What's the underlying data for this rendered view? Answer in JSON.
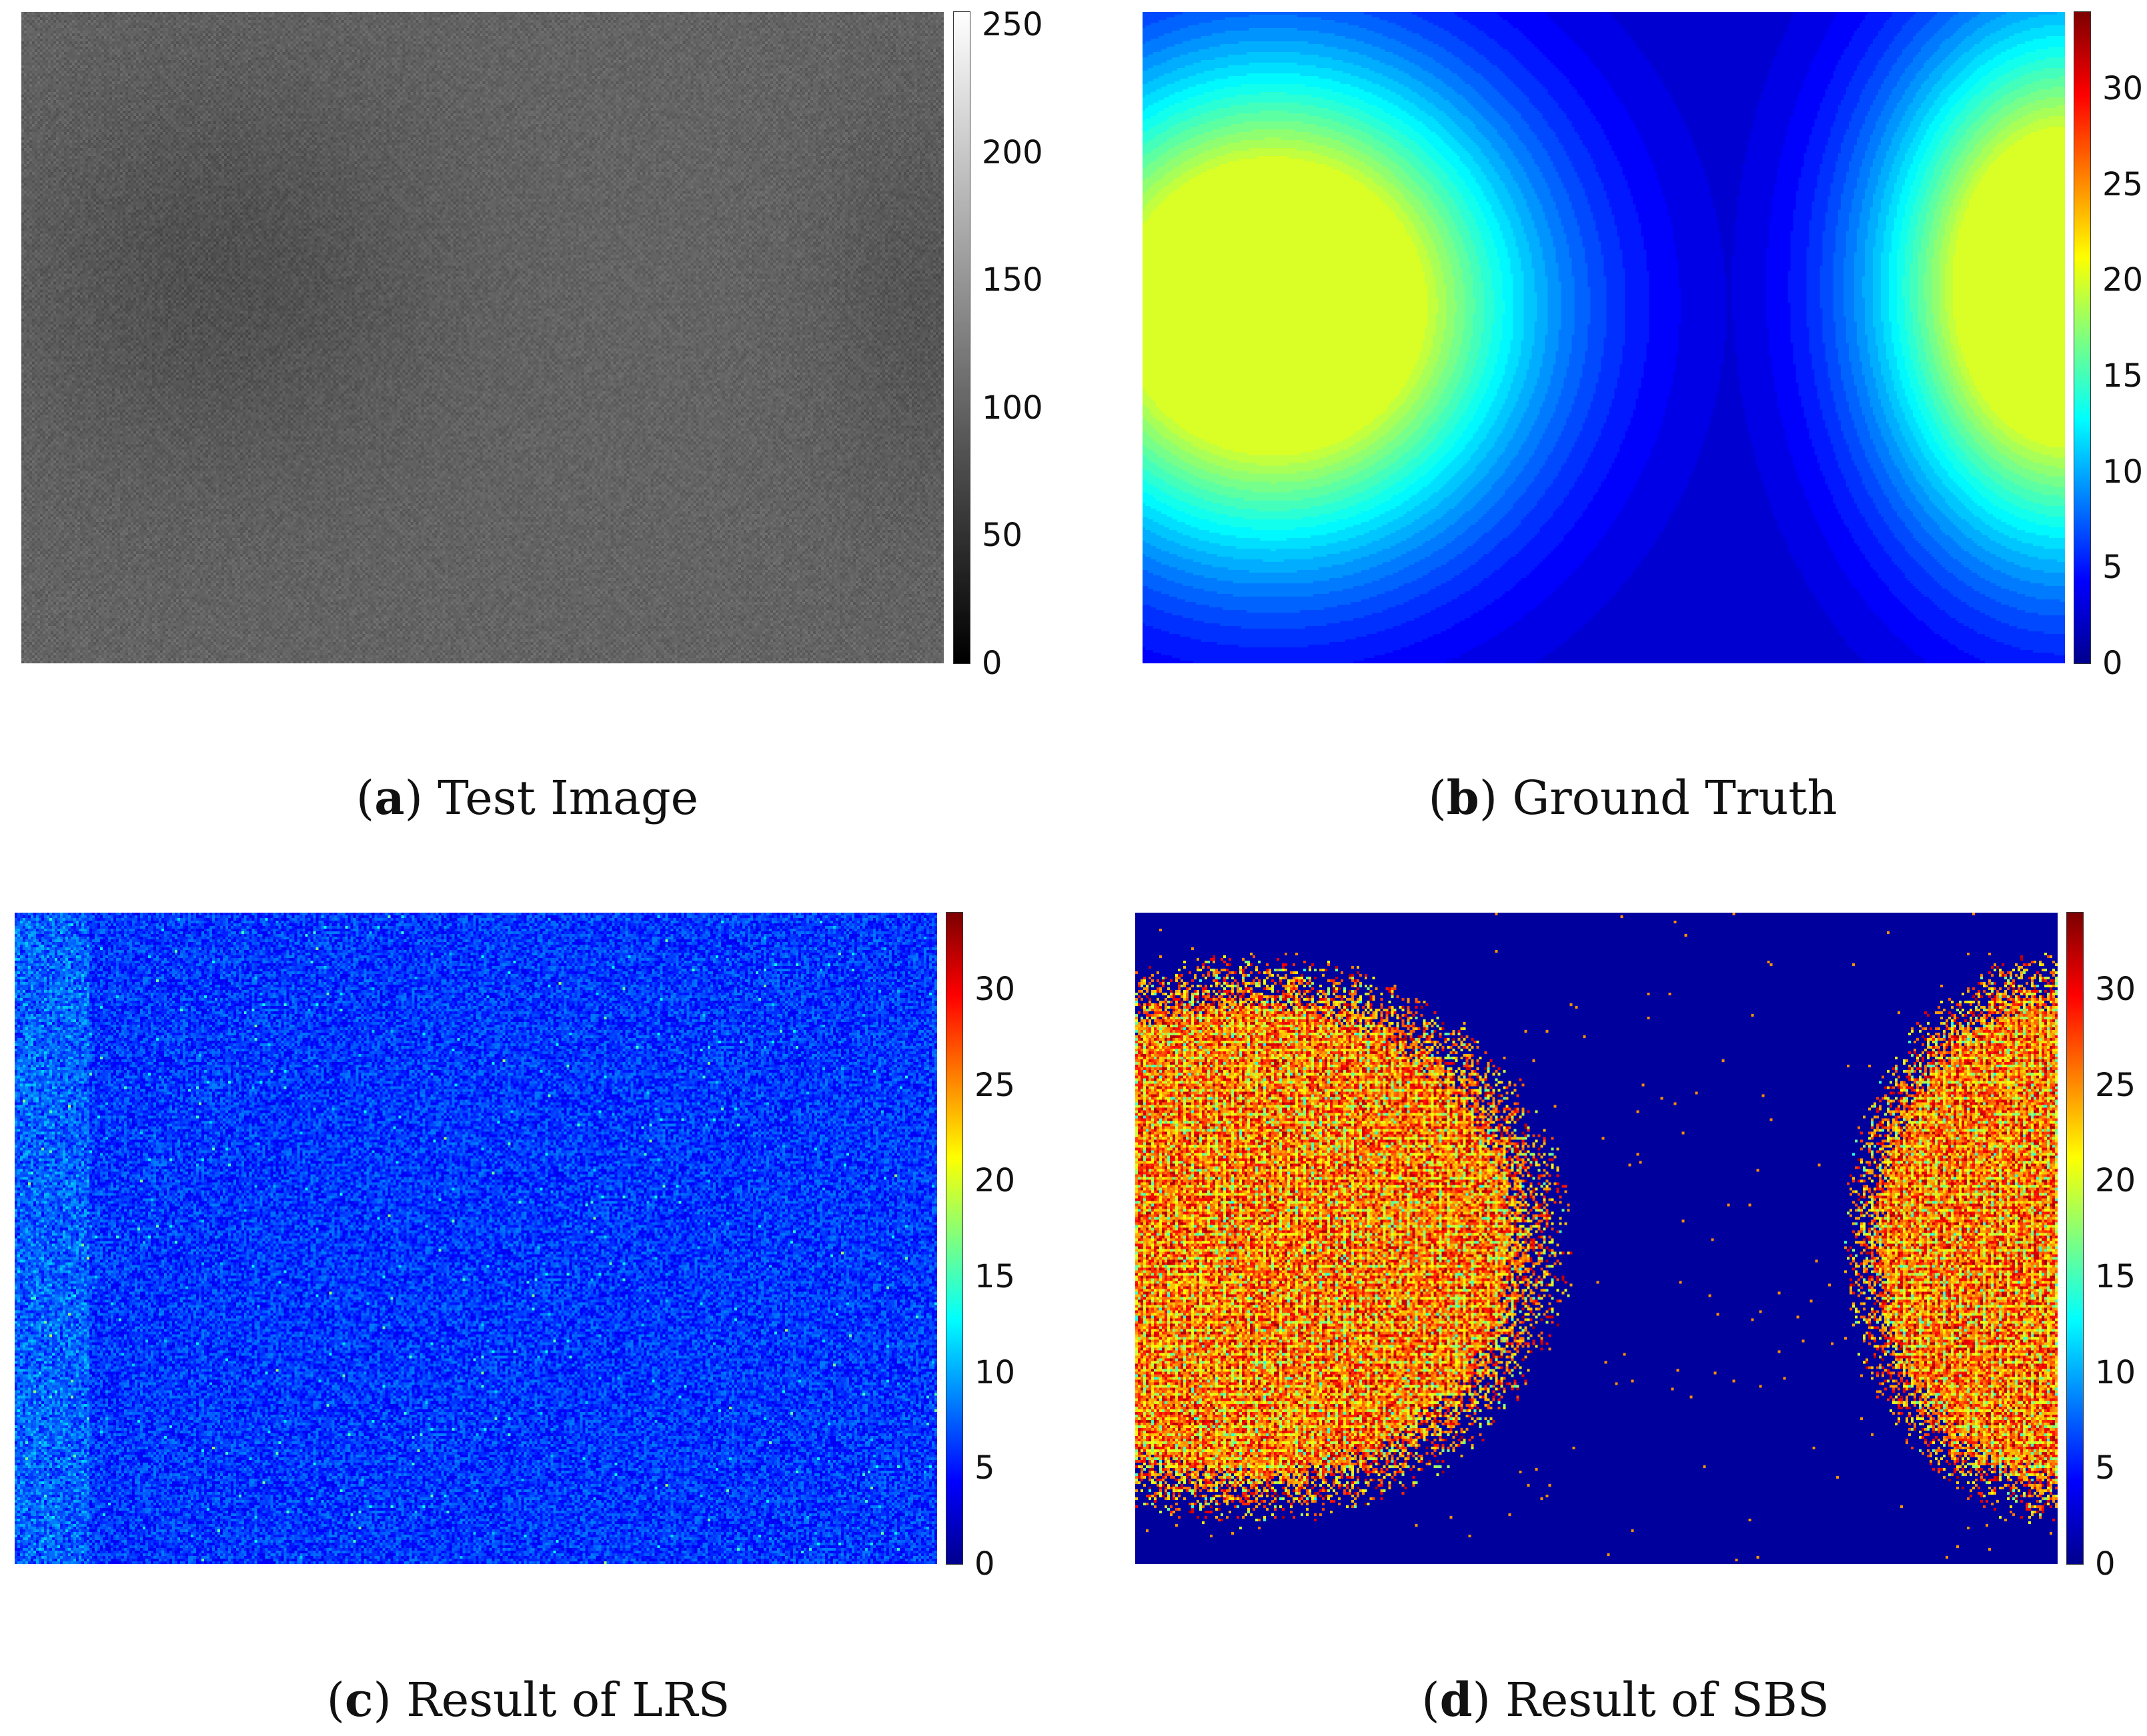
{
  "colors": {
    "jet": [
      "#00008f",
      "#0000ff",
      "#0080ff",
      "#00ffff",
      "#80ff80",
      "#ffff00",
      "#ff8000",
      "#ff0000",
      "#800000"
    ],
    "gray": [
      "#000000",
      "#ffffff"
    ]
  },
  "chart_data": [
    {
      "type": "heatmap",
      "caption_letter": "a",
      "caption_text": "Test Image",
      "colormap": "gray",
      "clim": [
        0,
        255
      ],
      "colorbar_ticks": [
        0,
        50,
        100,
        150,
        200,
        250
      ],
      "description_values": {
        "background_mean": 100,
        "blob_mean": 80,
        "blob_centers_fraction": [
          [
            0.2,
            0.35
          ],
          [
            0.98,
            0.45
          ]
        ]
      }
    },
    {
      "type": "heatmap",
      "caption_letter": "b",
      "caption_text": "Ground Truth",
      "colormap": "jet",
      "clim": [
        0,
        34
      ],
      "colorbar_ticks": [
        0,
        5,
        10,
        15,
        20,
        25,
        30
      ],
      "plateau_value": 20
    },
    {
      "type": "heatmap",
      "caption_letter": "c",
      "caption_text": "Result of LRS",
      "colormap": "jet",
      "clim": [
        0,
        34
      ],
      "colorbar_ticks": [
        0,
        5,
        10,
        15,
        20,
        25,
        30
      ],
      "typical_value": 6
    },
    {
      "type": "heatmap",
      "caption_letter": "d",
      "caption_text": "Result of SBS",
      "colormap": "jet",
      "clim": [
        0,
        34
      ],
      "colorbar_ticks": [
        0,
        5,
        10,
        15,
        20,
        25,
        30
      ],
      "blob_value": 28
    }
  ]
}
